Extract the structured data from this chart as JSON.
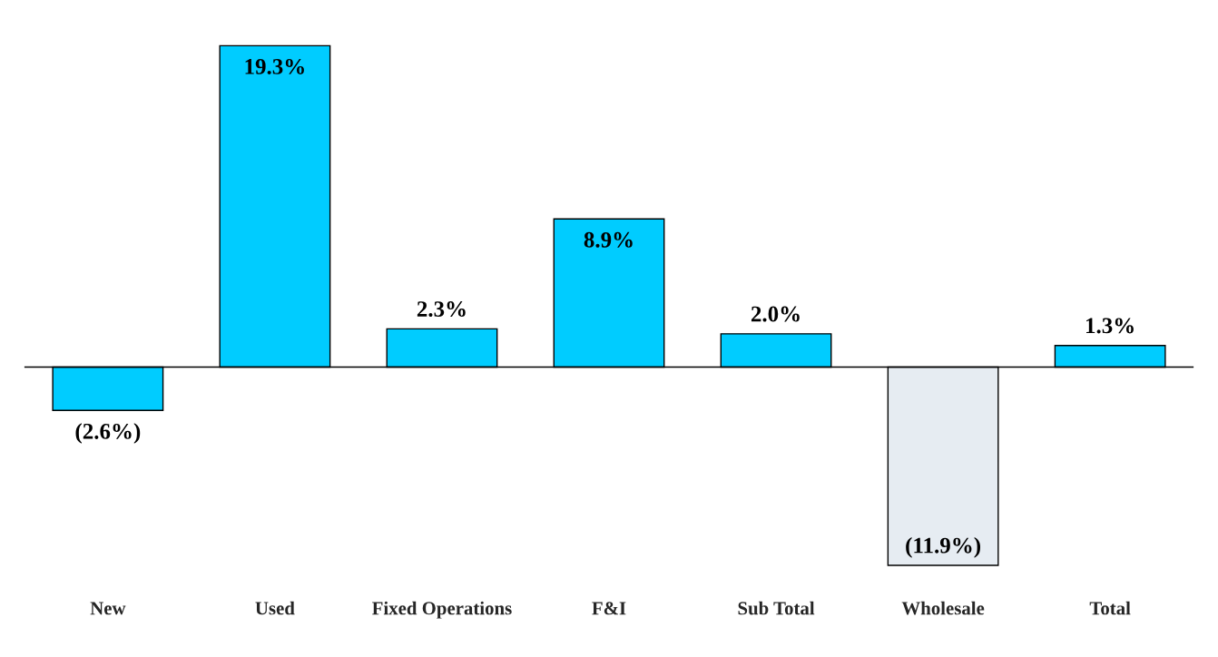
{
  "chart_data": {
    "type": "bar",
    "categories": [
      "New",
      "Used",
      "Fixed Operations",
      "F&I",
      "Sub Total",
      "Wholesale",
      "Total"
    ],
    "values": [
      -2.6,
      19.3,
      2.3,
      8.9,
      2.0,
      -11.9,
      1.3
    ],
    "colors": [
      "#00ccff",
      "#00ccff",
      "#00ccff",
      "#00ccff",
      "#00ccff",
      "#e6ecf2",
      "#00ccff"
    ],
    "value_labels": [
      "(2.6%)",
      "19.3%",
      "2.3%",
      "8.9%",
      "2.0%",
      "(11.9%)",
      "1.3%"
    ],
    "grid": false,
    "legend": false
  }
}
